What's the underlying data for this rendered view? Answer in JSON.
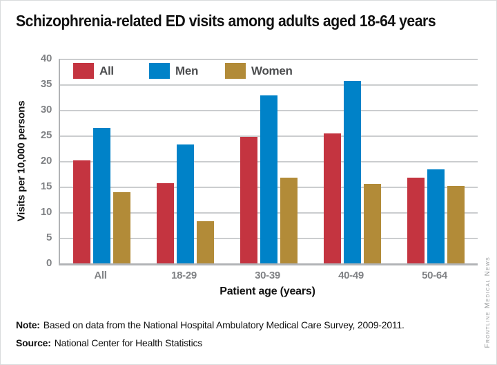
{
  "title": "Schizophrenia-related ED visits among adults aged 18-64 years",
  "chart_data": {
    "type": "bar",
    "categories": [
      "All",
      "18-29",
      "30-39",
      "40-49",
      "50-64"
    ],
    "series": [
      {
        "name": "All",
        "color": "#c43440",
        "values": [
          20.1,
          15.7,
          24.7,
          25.4,
          16.8
        ]
      },
      {
        "name": "Men",
        "color": "#0082c8",
        "values": [
          26.5,
          23.2,
          32.8,
          35.7,
          18.4
        ]
      },
      {
        "name": "Women",
        "color": "#b28b38",
        "values": [
          13.9,
          8.2,
          16.8,
          15.6,
          15.2
        ]
      }
    ],
    "xlabel": "Patient age (years)",
    "ylabel": "Visits per 10,000 persons",
    "ylim": [
      0,
      40
    ],
    "ytick_step": 5,
    "grid": true,
    "legend_position": "top-left-inside"
  },
  "note": {
    "label": "Note:",
    "text": "Based on data from the National Hospital Ambulatory Medical Care Survey, 2009-2011."
  },
  "source": {
    "label": "Source:",
    "text": "National Center for Health Statistics"
  },
  "credit": "Frontline Medical News",
  "colors": {
    "gridline": "#cbcdcf",
    "axis_border": "#b1b3b6",
    "tick_label": "#808285",
    "legend_label": "#4d4e50"
  }
}
